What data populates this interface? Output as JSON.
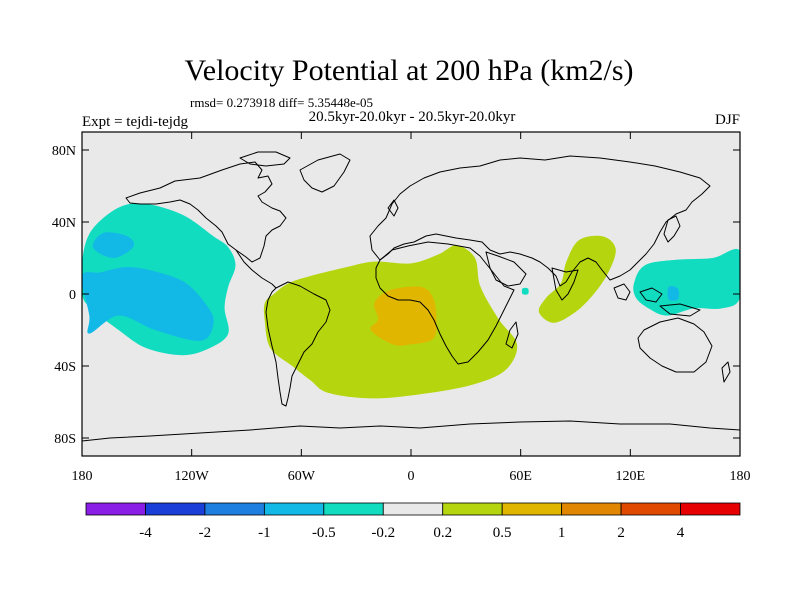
{
  "title": "Velocity Potential at 200 hPa (km2/s)",
  "stats": "rmsd= 0.273918 diff= 5.35448e-05",
  "periods": "20.5kyr-20.0kyr - 20.5kyr-20.0kyr",
  "experiment": "Expt = tejdi-tejdg",
  "season": "DJF",
  "map": {
    "lon_range": [
      -180,
      180
    ],
    "lat_range": [
      -90,
      90
    ],
    "lat_ticks": [
      {
        "lat": 80,
        "label": "80N"
      },
      {
        "lat": 40,
        "label": "40N"
      },
      {
        "lat": 0,
        "label": "0"
      },
      {
        "lat": -40,
        "label": "40S"
      },
      {
        "lat": -80,
        "label": "80S"
      }
    ],
    "lon_ticks": [
      {
        "lon": -180,
        "label": "180"
      },
      {
        "lon": -120,
        "label": "120W"
      },
      {
        "lon": -60,
        "label": "60W"
      },
      {
        "lon": 0,
        "label": "0"
      },
      {
        "lon": 60,
        "label": "60E"
      },
      {
        "lon": 120,
        "label": "120E"
      },
      {
        "lon": 180,
        "label": "180"
      }
    ],
    "background_color": "#e9e9e9"
  },
  "colorbar": {
    "colors": [
      "#8a1ee6",
      "#1a3fd9",
      "#1e7fe0",
      "#12b9e6",
      "#12dcc0",
      "#e9e9e9",
      "#b5d60e",
      "#e0b600",
      "#e08600",
      "#e04a00",
      "#e60000"
    ],
    "labels": [
      "-4",
      "-2",
      "-1",
      "-0.5",
      "-0.2",
      "0.2",
      "0.5",
      "1",
      "2",
      "4"
    ]
  },
  "anomaly_regions": [
    {
      "name": "pacific-negative",
      "level": "-0.2",
      "color": "#12dcc0",
      "outline": [
        [
          -180,
          18
        ],
        [
          -175,
          35
        ],
        [
          -160,
          48
        ],
        [
          -145,
          50
        ],
        [
          -125,
          44
        ],
        [
          -108,
          32
        ],
        [
          -100,
          26
        ],
        [
          -96,
          16
        ],
        [
          -100,
          4
        ],
        [
          -102,
          -8
        ],
        [
          -100,
          -22
        ],
        [
          -110,
          -30
        ],
        [
          -125,
          -34
        ],
        [
          -145,
          -30
        ],
        [
          -160,
          -20
        ],
        [
          -175,
          -8
        ],
        [
          -180,
          0
        ]
      ]
    },
    {
      "name": "pacific-negative-core",
      "level": "-0.5",
      "color": "#12b9e6",
      "outline": [
        [
          -176,
          -12
        ],
        [
          -176,
          -22
        ],
        [
          -160,
          -12
        ],
        [
          -140,
          -20
        ],
        [
          -115,
          -26
        ],
        [
          -108,
          -16
        ],
        [
          -112,
          -6
        ],
        [
          -123,
          6
        ],
        [
          -138,
          12
        ],
        [
          -155,
          15
        ],
        [
          -170,
          12
        ],
        [
          -180,
          10
        ]
      ]
    },
    {
      "name": "pacific-negative-north",
      "level": "-0.5",
      "color": "#12b9e6",
      "outline": [
        [
          -174,
          26
        ],
        [
          -168,
          34
        ],
        [
          -155,
          32
        ],
        [
          -152,
          26
        ],
        [
          -163,
          20
        ]
      ]
    },
    {
      "name": "maritime-negative",
      "level": "-0.2",
      "color": "#12dcc0",
      "outline": [
        [
          122,
          6
        ],
        [
          128,
          16
        ],
        [
          145,
          19
        ],
        [
          165,
          20
        ],
        [
          180,
          24
        ],
        [
          180,
          -2
        ],
        [
          170,
          -8
        ],
        [
          155,
          -8
        ],
        [
          140,
          -12
        ],
        [
          130,
          -8
        ],
        [
          123,
          -2
        ]
      ]
    },
    {
      "name": "maritime-negative-core",
      "level": "-0.5",
      "color": "#12b9e6",
      "outline": [
        [
          141,
          4
        ],
        [
          146,
          3
        ],
        [
          146,
          -3
        ],
        [
          141,
          -3
        ]
      ]
    },
    {
      "name": "arabian-negative-dot",
      "level": "-0.2",
      "color": "#12dcc0",
      "outline": [
        [
          61,
          3
        ],
        [
          64,
          3
        ],
        [
          64,
          0
        ],
        [
          61,
          0
        ]
      ]
    },
    {
      "name": "atlantic-positive",
      "level": "0.2",
      "color": "#b5d60e",
      "outline": [
        [
          -75,
          0
        ],
        [
          -67,
          6
        ],
        [
          -55,
          10
        ],
        [
          -35,
          15
        ],
        [
          -20,
          18
        ],
        [
          0,
          17
        ],
        [
          15,
          22
        ],
        [
          25,
          27
        ],
        [
          35,
          20
        ],
        [
          38,
          4
        ],
        [
          48,
          -14
        ],
        [
          58,
          -28
        ],
        [
          52,
          -42
        ],
        [
          35,
          -50
        ],
        [
          10,
          -55
        ],
        [
          -20,
          -58
        ],
        [
          -45,
          -55
        ],
        [
          -55,
          -48
        ],
        [
          -65,
          -40
        ],
        [
          -77,
          -30
        ],
        [
          -80,
          -15
        ],
        [
          -80,
          -5
        ]
      ]
    },
    {
      "name": "atlantic-positive-core",
      "level": "0.5",
      "color": "#e0b600",
      "outline": [
        [
          -18,
          -14
        ],
        [
          -20,
          -5
        ],
        [
          -12,
          2
        ],
        [
          5,
          4
        ],
        [
          12,
          -2
        ],
        [
          14,
          -15
        ],
        [
          12,
          -25
        ],
        [
          0,
          -28
        ],
        [
          -10,
          -28
        ],
        [
          -22,
          -20
        ]
      ]
    },
    {
      "name": "indian-positive",
      "level": "0.2",
      "color": "#b5d60e",
      "outline": [
        [
          78,
          -16
        ],
        [
          90,
          -10
        ],
        [
          100,
          0
        ],
        [
          108,
          12
        ],
        [
          112,
          25
        ],
        [
          105,
          32
        ],
        [
          92,
          30
        ],
        [
          85,
          18
        ],
        [
          82,
          6
        ],
        [
          74,
          -2
        ],
        [
          70,
          -10
        ]
      ]
    }
  ]
}
